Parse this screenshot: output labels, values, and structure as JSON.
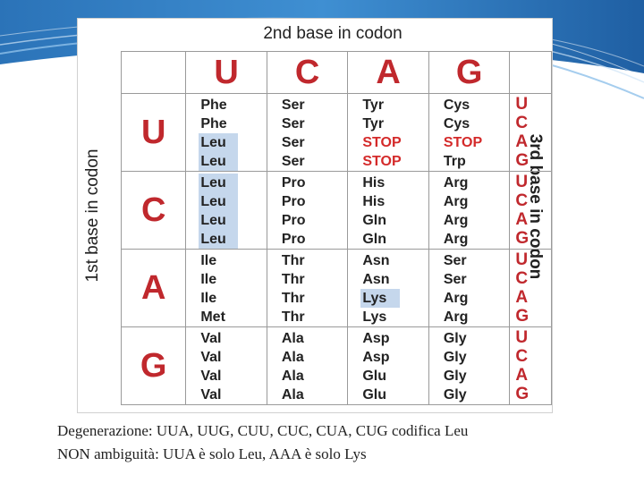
{
  "header_top": "2nd base in codon",
  "header_left": "1st base in codon",
  "header_right": "3rd base in codon",
  "second_bases": [
    "U",
    "C",
    "A",
    "G"
  ],
  "rows": [
    {
      "first": "U",
      "third": [
        "U",
        "C",
        "A",
        "G"
      ],
      "cols": [
        [
          "Phe",
          "Phe",
          "Leu",
          "Leu"
        ],
        [
          "Ser",
          "Ser",
          "Ser",
          "Ser"
        ],
        [
          "Tyr",
          "Tyr",
          "STOP",
          "STOP"
        ],
        [
          "Cys",
          "Cys",
          "STOP",
          "Trp"
        ]
      ]
    },
    {
      "first": "C",
      "third": [
        "U",
        "C",
        "A",
        "G"
      ],
      "cols": [
        [
          "Leu",
          "Leu",
          "Leu",
          "Leu"
        ],
        [
          "Pro",
          "Pro",
          "Pro",
          "Pro"
        ],
        [
          "His",
          "His",
          "Gln",
          "Gln"
        ],
        [
          "Arg",
          "Arg",
          "Arg",
          "Arg"
        ]
      ]
    },
    {
      "first": "A",
      "third": [
        "U",
        "C",
        "A",
        "G"
      ],
      "cols": [
        [
          "Ile",
          "Ile",
          "Ile",
          "Met"
        ],
        [
          "Thr",
          "Thr",
          "Thr",
          "Thr"
        ],
        [
          "Asn",
          "Asn",
          "Lys",
          "Lys"
        ],
        [
          "Ser",
          "Ser",
          "Arg",
          "Arg"
        ]
      ]
    },
    {
      "first": "G",
      "third": [
        "U",
        "C",
        "A",
        "G"
      ],
      "cols": [
        [
          "Val",
          "Val",
          "Val",
          "Val"
        ],
        [
          "Ala",
          "Ala",
          "Ala",
          "Ala"
        ],
        [
          "Asp",
          "Asp",
          "Glu",
          "Glu"
        ],
        [
          "Gly",
          "Gly",
          "Gly",
          "Gly"
        ]
      ]
    }
  ],
  "colors": {
    "base_letter": "#c0282d",
    "stop": "#d42a2a",
    "highlight": "#c5d7ec",
    "banner": "#1f63a8"
  },
  "caption_line1": "Degenerazione: UUA, UUG, CUU, CUC, CUA, CUG codifica Leu",
  "caption_line2": "NON ambiguità: UUA è solo Leu, AAA è solo Lys"
}
